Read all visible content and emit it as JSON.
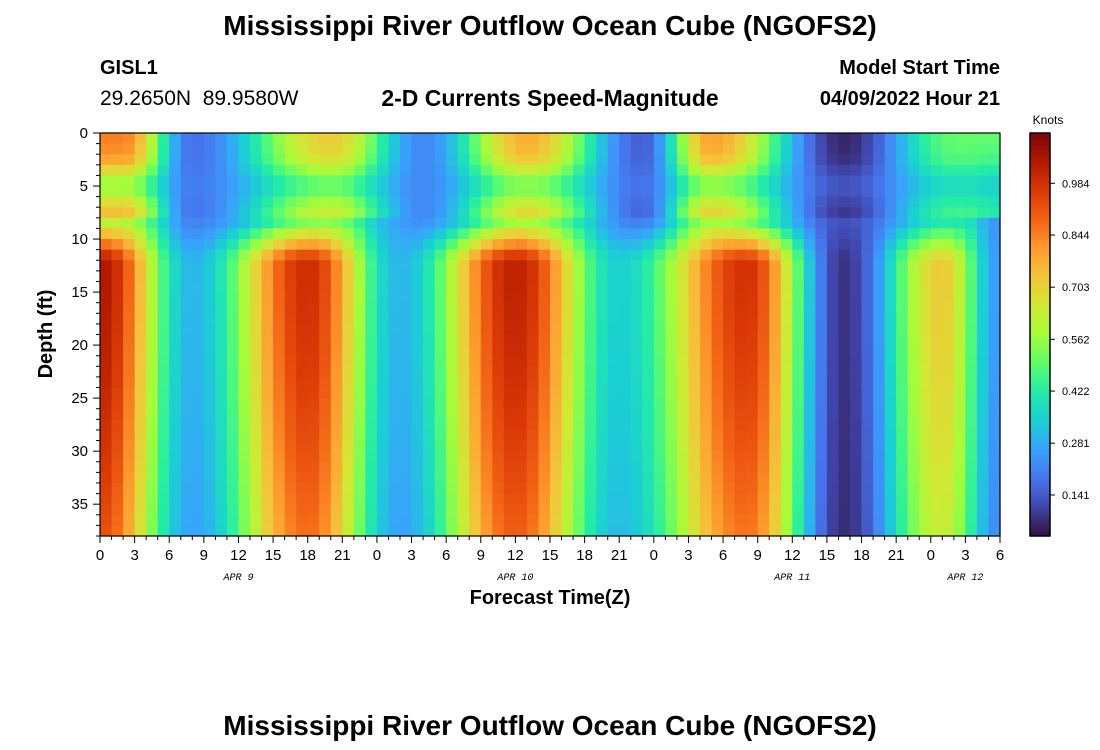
{
  "header": {
    "title": "Mississippi River Outflow Ocean Cube (NGOFS2)",
    "station": "GISL1",
    "coordinates": "29.2650N  89.9580W",
    "subtitle": "2-D Currents Speed-Magnitude",
    "model_start_label": "Model Start Time",
    "model_start_value": "04/09/2022 Hour 21"
  },
  "footer": {
    "title": "Mississippi River Outflow Ocean Cube (NGOFS2)"
  },
  "colors": {
    "colormap": [
      "#30123b",
      "#4145ab",
      "#4675ed",
      "#39a2fc",
      "#1bcfd4",
      "#24eca6",
      "#61fc6c",
      "#a4fc3b",
      "#d1e834",
      "#f3c63a",
      "#fe9b2d",
      "#f36315",
      "#d93806",
      "#b11901",
      "#7a0402"
    ]
  },
  "chart_data": {
    "type": "heatmap",
    "xlabel": "Forecast Time(Z)",
    "ylabel": "Depth (ft)",
    "colorbar_label": "Knots",
    "colorbar_ticks": [
      "0.984",
      "0.844",
      "0.703",
      "0.562",
      "0.422",
      "0.281",
      "0.141"
    ],
    "colorbar_range": [
      0.03,
      1.12
    ],
    "xlim": [
      0,
      78
    ],
    "ylim": [
      38,
      0
    ],
    "x_ticks": [
      "0",
      "3",
      "6",
      "9",
      "12",
      "15",
      "18",
      "21",
      "0",
      "3",
      "6",
      "9",
      "12",
      "15",
      "18",
      "21",
      "0",
      "3",
      "6",
      "9",
      "12",
      "15",
      "18",
      "21",
      "0",
      "3",
      "6"
    ],
    "y_ticks": [
      "0",
      "5",
      "10",
      "15",
      "20",
      "25",
      "30",
      "35"
    ],
    "date_labels": [
      {
        "label": "APR 9",
        "hour": 12
      },
      {
        "label": "APR 10",
        "hour": 36
      },
      {
        "label": "APR 11",
        "hour": 60
      },
      {
        "label": "APR 12",
        "hour": 75
      }
    ],
    "grid": false,
    "pattern": {
      "bottom_layer_peaks": [
        {
          "hour": 0,
          "speed": 1.05
        },
        {
          "hour": 18,
          "speed": 0.99
        },
        {
          "hour": 36,
          "speed": 1.02
        },
        {
          "hour": 56,
          "speed": 0.98
        },
        {
          "hour": 73,
          "speed": 0.72
        }
      ],
      "bottom_layer_troughs": [
        {
          "hour": 8,
          "speed": 0.3
        },
        {
          "hour": 26,
          "speed": 0.3
        },
        {
          "hour": 45,
          "speed": 0.35
        },
        {
          "hour": 64.5,
          "speed": 0.08
        },
        {
          "hour": 78,
          "speed": 0.25
        }
      ],
      "surface_layer_peaks": [
        {
          "hour": 2,
          "speed": 0.85
        },
        {
          "hour": 20,
          "speed": 0.72
        },
        {
          "hour": 37,
          "speed": 0.78
        },
        {
          "hour": 53,
          "speed": 0.8
        },
        {
          "hour": 74,
          "speed": 0.5
        }
      ],
      "surface_layer_troughs": [
        {
          "hour": 8,
          "speed": 0.18
        },
        {
          "hour": 28,
          "speed": 0.22
        },
        {
          "hour": 47,
          "speed": 0.15
        },
        {
          "hour": 64.5,
          "speed": 0.06
        }
      ]
    }
  }
}
